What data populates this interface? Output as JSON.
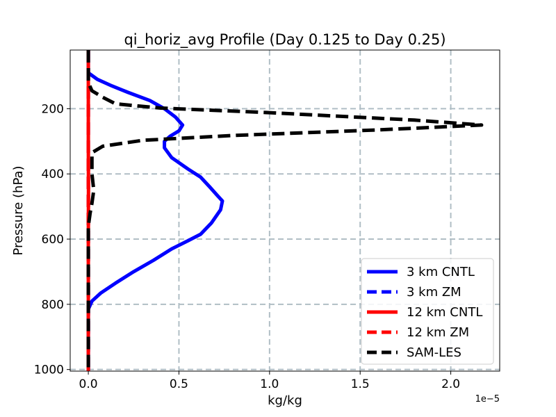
{
  "chart_data": {
    "type": "line",
    "title": "qi_horiz_avg Profile (Day 0.125 to Day 0.25)",
    "xlabel": "kg/kg",
    "ylabel": "Pressure (hPa)",
    "x_offset_label": "1e−5",
    "xlim": [
      -0.1,
      2.27
    ],
    "ylim": [
      1005,
      20
    ],
    "y_inverted": true,
    "grid": true,
    "x_ticks": [
      0.0,
      0.5,
      1.0,
      1.5,
      2.0
    ],
    "x_tick_labels": [
      "0.0",
      "0.5",
      "1.0",
      "1.5",
      "2.0"
    ],
    "y_ticks": [
      200,
      400,
      600,
      800,
      1000
    ],
    "y_tick_labels": [
      "200",
      "400",
      "600",
      "800",
      "1000"
    ],
    "legend_location": "lower-right",
    "series": [
      {
        "name": "3 km CNTL",
        "color": "#0000ff",
        "dash": "solid",
        "x": [
          0.0,
          0.0,
          0.05,
          0.13,
          0.22,
          0.34,
          0.42,
          0.48,
          0.52,
          0.5,
          0.45,
          0.42,
          0.42,
          0.46,
          0.55,
          0.62,
          0.67,
          0.71,
          0.74,
          0.73,
          0.68,
          0.62,
          0.55,
          0.46,
          0.36,
          0.25,
          0.15,
          0.07,
          0.02,
          0.0,
          0.0,
          0.0
        ],
        "p": [
          20,
          90,
          110,
          130,
          150,
          175,
          200,
          225,
          250,
          268,
          285,
          300,
          320,
          350,
          385,
          410,
          440,
          465,
          483,
          510,
          550,
          585,
          605,
          630,
          665,
          700,
          735,
          765,
          790,
          815,
          900,
          1005
        ]
      },
      {
        "name": "3 km ZM",
        "color": "#0000ff",
        "dash": "dashed",
        "x": [
          0.0,
          0.0
        ],
        "p": [
          20,
          1005
        ]
      },
      {
        "name": "12 km CNTL",
        "color": "#ff0000",
        "dash": "solid",
        "x": [
          0.0,
          0.0,
          0.0,
          0.001,
          0.0,
          0.0
        ],
        "p": [
          20,
          200,
          300,
          450,
          600,
          1005
        ]
      },
      {
        "name": "12 km ZM",
        "color": "#ff0000",
        "dash": "dashed",
        "x": [
          0.0,
          0.0
        ],
        "p": [
          20,
          1005
        ]
      },
      {
        "name": "SAM-LES",
        "color": "#000000",
        "dash": "dashed",
        "x": [
          0.0,
          0.0,
          0.02,
          0.08,
          0.15,
          0.4,
          1.0,
          1.8,
          2.17,
          1.6,
          0.8,
          0.3,
          0.08,
          0.02,
          0.02,
          0.02,
          0.03,
          0.02,
          0.01,
          0.0,
          0.0,
          0.0
        ],
        "p": [
          20,
          120,
          145,
          165,
          185,
          198,
          212,
          235,
          250,
          265,
          282,
          297,
          315,
          335,
          360,
          400,
          450,
          490,
          520,
          560,
          800,
          1005
        ]
      }
    ]
  }
}
